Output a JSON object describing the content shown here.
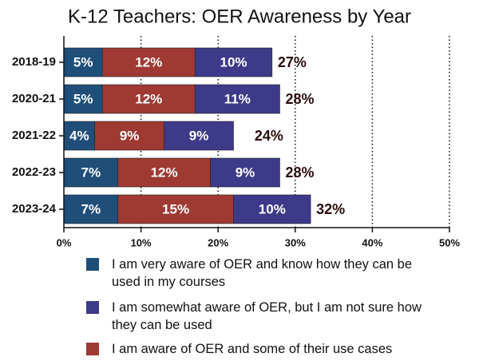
{
  "chart_data": {
    "type": "stacked-barh",
    "title": "K-12 Teachers: OER Awareness by Year",
    "categories": [
      "2018-19",
      "2020-21",
      "2021-22",
      "2022-23",
      "2023-24"
    ],
    "series": [
      {
        "name": "I am very aware of OER and know how they can be used in my courses",
        "color": "#1f4e79",
        "values": [
          5,
          5,
          4,
          7,
          7
        ],
        "value_labels": [
          "5%",
          "5%",
          "4%",
          "7%",
          "7%"
        ]
      },
      {
        "name": "I am somewhat aware of OER, but I am not sure how they can be used",
        "color": "#3d3a8a",
        "values": [
          10,
          11,
          9,
          9,
          10
        ],
        "value_labels": [
          "10%",
          "11%",
          "9%",
          "9%",
          "10%"
        ]
      },
      {
        "name": "I am aware of OER and some of their use cases",
        "color": "#9e3a33",
        "values": [
          12,
          12,
          9,
          12,
          15
        ],
        "value_labels": [
          "12%",
          "12%",
          "9%",
          "12%",
          "15%"
        ]
      }
    ],
    "stack_order": [
      0,
      2,
      1
    ],
    "totals": {
      "values": [
        27,
        28,
        24,
        28,
        32
      ],
      "value_labels": [
        "27%",
        "28%",
        "24%",
        "28%",
        "32%"
      ]
    },
    "xlim": [
      0,
      50
    ],
    "xticks": [
      {
        "value": 0,
        "label": "0%"
      },
      {
        "value": 10,
        "label": "10%"
      },
      {
        "value": 20,
        "label": "20%"
      },
      {
        "value": 30,
        "label": "30%"
      },
      {
        "value": 40,
        "label": "40%"
      },
      {
        "value": 50,
        "label": "50%"
      }
    ],
    "grid": true
  }
}
